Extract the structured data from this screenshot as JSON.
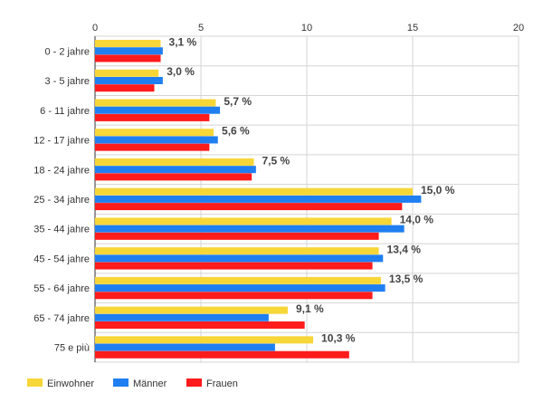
{
  "chart_data": {
    "type": "bar",
    "orientation": "horizontal",
    "categories": [
      "0 - 2 jahre",
      "3 - 5 jahre",
      "6 - 11 jahre",
      "12 - 17 jahre",
      "18 - 24 jahre",
      "25 - 34 jahre",
      "35 - 44 jahre",
      "45 - 54 jahre",
      "55 - 64 jahre",
      "65 - 74 jahre",
      "75 e più"
    ],
    "series": [
      {
        "name": "Einwohner",
        "color": "#f7d637",
        "values": [
          3.1,
          3.0,
          5.7,
          5.6,
          7.5,
          15.0,
          14.0,
          13.4,
          13.5,
          9.1,
          10.3
        ],
        "labels": [
          "3,1 %",
          "3,0 %",
          "5,7 %",
          "5,6 %",
          "7,5 %",
          "15,0 %",
          "14,0 %",
          "13,4 %",
          "13,5 %",
          "9,1 %",
          "10,3 %"
        ]
      },
      {
        "name": "Männer",
        "color": "#1f7ff1",
        "values": [
          3.2,
          3.2,
          5.9,
          5.8,
          7.6,
          15.4,
          14.6,
          13.6,
          13.7,
          8.2,
          8.5
        ]
      },
      {
        "name": "Frauen",
        "color": "#fe1b1c",
        "values": [
          3.1,
          2.8,
          5.4,
          5.4,
          7.4,
          14.5,
          13.4,
          13.1,
          13.1,
          9.9,
          12.0
        ]
      }
    ],
    "xlim": [
      0,
      20
    ],
    "xticks": [
      0,
      5,
      10,
      15,
      20
    ],
    "xtick_labels": [
      "0",
      "5",
      "10",
      "15",
      "20"
    ],
    "axis_position": "top",
    "grid": true,
    "legend_position": "bottom-left"
  }
}
